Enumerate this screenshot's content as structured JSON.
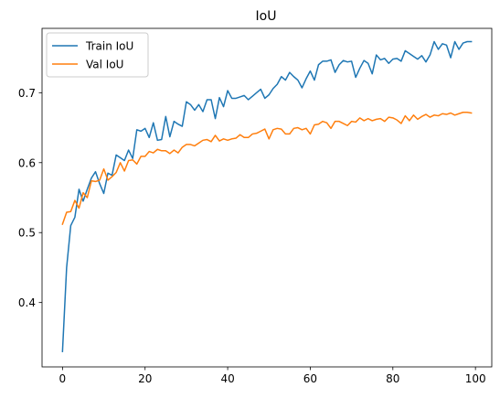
{
  "chart_data": {
    "type": "line",
    "title": "IoU",
    "xlabel": "",
    "ylabel": "",
    "xlim": [
      -4.95,
      103.95
    ],
    "ylim": [
      0.308,
      0.792
    ],
    "xticks": [
      0,
      20,
      40,
      60,
      80,
      100
    ],
    "yticks": [
      0.4,
      0.5,
      0.6,
      0.7
    ],
    "grid": false,
    "legend_position": "top-left",
    "x": [
      0,
      1,
      2,
      3,
      4,
      5,
      6,
      7,
      8,
      9,
      10,
      11,
      12,
      13,
      14,
      15,
      16,
      17,
      18,
      19,
      20,
      21,
      22,
      23,
      24,
      25,
      26,
      27,
      28,
      29,
      30,
      31,
      32,
      33,
      34,
      35,
      36,
      37,
      38,
      39,
      40,
      41,
      42,
      43,
      44,
      45,
      46,
      47,
      48,
      49,
      50,
      51,
      52,
      53,
      54,
      55,
      56,
      57,
      58,
      59,
      60,
      61,
      62,
      63,
      64,
      65,
      66,
      67,
      68,
      69,
      70,
      71,
      72,
      73,
      74,
      75,
      76,
      77,
      78,
      79,
      80,
      81,
      82,
      83,
      84,
      85,
      86,
      87,
      88,
      89,
      90,
      91,
      92,
      93,
      94,
      95,
      96,
      97,
      98,
      99
    ],
    "series": [
      {
        "name": "Train IoU",
        "color": "#1f77b4",
        "values": [
          0.33,
          0.45,
          0.51,
          0.522,
          0.562,
          0.545,
          0.562,
          0.578,
          0.587,
          0.57,
          0.556,
          0.585,
          0.582,
          0.611,
          0.607,
          0.603,
          0.618,
          0.606,
          0.647,
          0.645,
          0.649,
          0.636,
          0.657,
          0.632,
          0.633,
          0.666,
          0.637,
          0.659,
          0.655,
          0.652,
          0.687,
          0.683,
          0.675,
          0.683,
          0.673,
          0.69,
          0.69,
          0.663,
          0.693,
          0.68,
          0.703,
          0.692,
          0.692,
          0.694,
          0.696,
          0.69,
          0.695,
          0.7,
          0.705,
          0.692,
          0.697,
          0.706,
          0.712,
          0.723,
          0.718,
          0.729,
          0.723,
          0.718,
          0.707,
          0.72,
          0.731,
          0.718,
          0.74,
          0.745,
          0.745,
          0.747,
          0.729,
          0.74,
          0.746,
          0.744,
          0.745,
          0.722,
          0.735,
          0.746,
          0.742,
          0.727,
          0.754,
          0.747,
          0.749,
          0.742,
          0.748,
          0.749,
          0.745,
          0.76,
          0.756,
          0.752,
          0.748,
          0.753,
          0.744,
          0.754,
          0.773,
          0.762,
          0.77,
          0.768,
          0.75,
          0.773,
          0.762,
          0.771,
          0.773,
          0.773
        ]
      },
      {
        "name": "Val IoU",
        "color": "#ff7f0e",
        "values": [
          0.512,
          0.529,
          0.53,
          0.546,
          0.535,
          0.557,
          0.55,
          0.574,
          0.573,
          0.575,
          0.591,
          0.575,
          0.58,
          0.586,
          0.6,
          0.588,
          0.603,
          0.604,
          0.598,
          0.609,
          0.609,
          0.616,
          0.614,
          0.619,
          0.617,
          0.617,
          0.613,
          0.618,
          0.614,
          0.622,
          0.626,
          0.626,
          0.624,
          0.628,
          0.632,
          0.633,
          0.63,
          0.639,
          0.631,
          0.634,
          0.632,
          0.634,
          0.635,
          0.64,
          0.636,
          0.636,
          0.641,
          0.642,
          0.645,
          0.648,
          0.634,
          0.647,
          0.649,
          0.648,
          0.641,
          0.641,
          0.649,
          0.65,
          0.647,
          0.649,
          0.641,
          0.654,
          0.655,
          0.659,
          0.657,
          0.649,
          0.659,
          0.659,
          0.656,
          0.653,
          0.659,
          0.658,
          0.664,
          0.66,
          0.663,
          0.66,
          0.662,
          0.663,
          0.659,
          0.665,
          0.664,
          0.661,
          0.656,
          0.667,
          0.66,
          0.668,
          0.662,
          0.666,
          0.669,
          0.665,
          0.668,
          0.667,
          0.67,
          0.669,
          0.671,
          0.668,
          0.67,
          0.672,
          0.672,
          0.671
        ]
      }
    ]
  }
}
